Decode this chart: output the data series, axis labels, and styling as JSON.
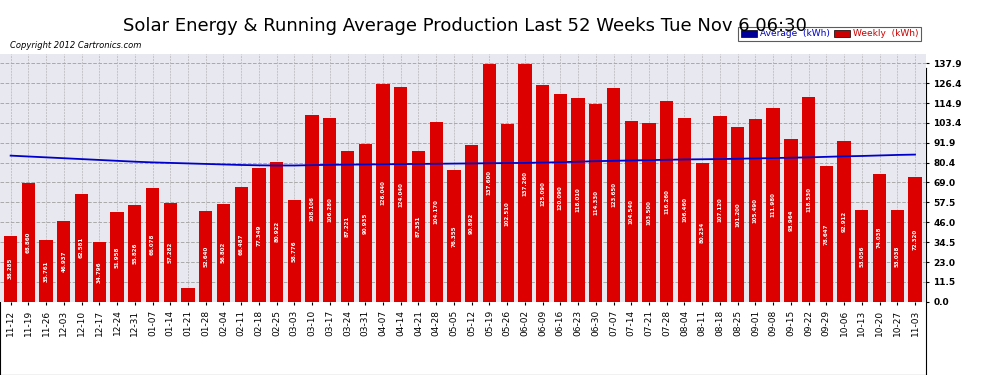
{
  "title": "Solar Energy & Running Average Production Last 52 Weeks Tue Nov 6 06:30",
  "copyright": "Copyright 2012 Cartronics.com",
  "legend_avg": "Average  (kWh)",
  "legend_weekly": "Weekly  (kWh)",
  "bar_color": "#dd0000",
  "avg_line_color": "#0000cc",
  "background_color": "#ffffff",
  "plot_bg_color": "#e8e8f0",
  "grid_color": "#aaaaaa",
  "yticks": [
    0.0,
    11.5,
    23.0,
    34.5,
    46.0,
    57.5,
    69.0,
    80.4,
    91.9,
    103.4,
    114.9,
    126.4,
    137.9
  ],
  "categories": [
    "11-12",
    "11-19",
    "11-26",
    "12-03",
    "12-10",
    "12-17",
    "12-24",
    "12-31",
    "01-07",
    "01-14",
    "01-21",
    "01-28",
    "02-04",
    "02-11",
    "02-18",
    "02-25",
    "03-03",
    "03-10",
    "03-17",
    "03-24",
    "03-31",
    "04-07",
    "04-14",
    "04-21",
    "04-28",
    "05-05",
    "05-12",
    "05-19",
    "05-26",
    "06-02",
    "06-09",
    "06-16",
    "06-23",
    "06-30",
    "07-07",
    "07-14",
    "07-21",
    "07-28",
    "08-04",
    "08-11",
    "08-18",
    "08-25",
    "09-01",
    "09-08",
    "09-15",
    "09-22",
    "09-29",
    "10-06",
    "10-13",
    "10-20",
    "10-27",
    "11-03"
  ],
  "weekly_values": [
    38.285,
    68.86,
    35.761,
    46.937,
    62.581,
    34.796,
    51.958,
    55.826,
    66.078,
    57.282,
    8.022,
    52.64,
    56.802,
    66.487,
    77.349,
    80.922,
    58.776,
    108.106,
    106.28,
    87.221,
    90.935,
    126.04,
    124.04,
    87.351,
    104.17,
    76.355,
    90.892,
    137.6,
    102.51,
    137.26,
    125.09,
    120.09,
    118.01,
    114.33,
    123.65,
    104.54,
    103.5,
    116.26,
    106.46,
    80.234,
    107.12,
    101.2,
    105.49,
    111.98,
    93.964,
    118.53,
    78.647,
    92.912,
    53.056,
    74.038,
    53.038,
    72.32
  ],
  "avg_values": [
    84.5,
    84.0,
    83.5,
    83.0,
    82.5,
    82.0,
    81.5,
    81.0,
    80.6,
    80.3,
    80.0,
    79.7,
    79.4,
    79.1,
    78.9,
    78.8,
    78.8,
    79.0,
    79.2,
    79.3,
    79.4,
    79.5,
    79.6,
    79.7,
    79.8,
    79.9,
    80.0,
    80.1,
    80.2,
    80.3,
    80.5,
    80.7,
    81.0,
    81.3,
    81.5,
    81.7,
    81.9,
    82.1,
    82.3,
    82.4,
    82.5,
    82.7,
    82.9,
    83.1,
    83.3,
    83.5,
    83.8,
    84.1,
    84.3,
    84.6,
    84.9,
    85.1
  ],
  "ylim": [
    0,
    143
  ],
  "title_fontsize": 13,
  "tick_fontsize": 6.5,
  "bar_width": 0.75
}
